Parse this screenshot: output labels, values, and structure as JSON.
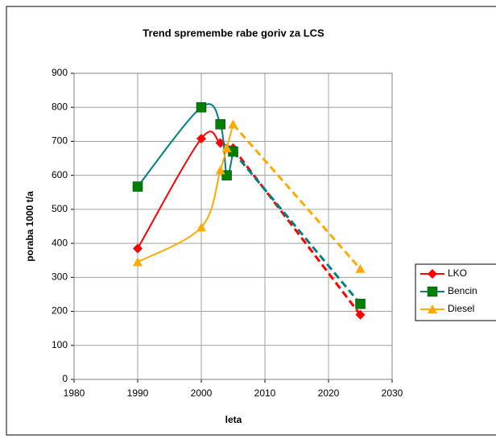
{
  "chart_data": {
    "type": "line",
    "title": "Trend spremembe rabe goriv za LCS",
    "xlabel": "leta",
    "ylabel": "poraba 1000 t/a",
    "xlim": [
      1980,
      2030
    ],
    "xticks": [
      1980,
      1990,
      2000,
      2010,
      2020,
      2030
    ],
    "ylim": [
      0,
      900
    ],
    "yticks": [
      0,
      100,
      200,
      300,
      400,
      500,
      600,
      700,
      800,
      900
    ],
    "grid": true,
    "legend": "right",
    "smooth": true,
    "dashed_last_segment": true,
    "series": [
      {
        "name": "LKO",
        "color": "#ff0000",
        "marker_color": "#ff0000",
        "marker": "diamond",
        "x": [
          1990,
          2000,
          2003,
          2005,
          2025
        ],
        "values": [
          385,
          708,
          695,
          680,
          190
        ]
      },
      {
        "name": "Bencin",
        "color": "#008080",
        "marker_color": "#008000",
        "marker": "square",
        "x": [
          1990,
          2000,
          2003,
          2004,
          2005,
          2025
        ],
        "values": [
          567,
          800,
          750,
          600,
          670,
          222
        ]
      },
      {
        "name": "Diesel",
        "color": "#ffaa00",
        "marker_color": "#ffaa00",
        "marker": "triangle",
        "x": [
          1990,
          2000,
          2003,
          2004,
          2005,
          2025
        ],
        "values": [
          345,
          447,
          615,
          680,
          750,
          325
        ]
      }
    ]
  }
}
